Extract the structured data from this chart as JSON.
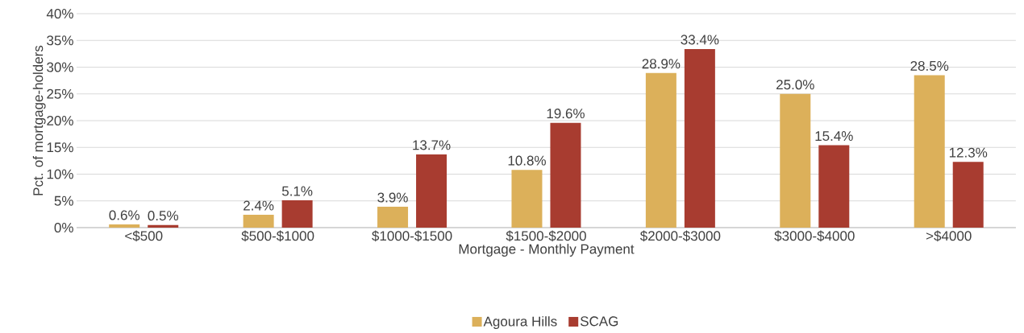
{
  "chart_data": {
    "type": "bar",
    "xlabel": "Mortgage - Monthly Payment",
    "ylabel": "Pct. of mortgage-holders",
    "categories": [
      "<$500",
      "$500-$1000",
      "$1000-$1500",
      "$1500-$2000",
      "$2000-$3000",
      "$3000-$4000",
      ">$4000"
    ],
    "series": [
      {
        "name": "Agoura Hills",
        "color": "#dcb05a",
        "values": [
          0.6,
          2.4,
          3.9,
          10.8,
          28.9,
          25.0,
          28.5
        ],
        "value_labels": [
          "0.6%",
          "2.4%",
          "3.9%",
          "10.8%",
          "28.9%",
          "25.0%",
          "28.5%"
        ]
      },
      {
        "name": "SCAG",
        "color": "#a83c30",
        "values": [
          0.5,
          5.1,
          13.7,
          19.6,
          33.4,
          15.4,
          12.3
        ],
        "value_labels": [
          "0.5%",
          "5.1%",
          "13.7%",
          "19.6%",
          "33.4%",
          "15.4%",
          "12.3%"
        ]
      }
    ],
    "ylim": [
      0,
      40
    ],
    "yticks": [
      {
        "value": 0,
        "label": "0%"
      },
      {
        "value": 5,
        "label": "5%"
      },
      {
        "value": 10,
        "label": "10%"
      },
      {
        "value": 15,
        "label": "15%"
      },
      {
        "value": 20,
        "label": "20%"
      },
      {
        "value": 25,
        "label": "25%"
      },
      {
        "value": 30,
        "label": "30%"
      },
      {
        "value": 35,
        "label": "35%"
      },
      {
        "value": 40,
        "label": "40%"
      }
    ],
    "grid": "y",
    "legend": "bottom"
  }
}
